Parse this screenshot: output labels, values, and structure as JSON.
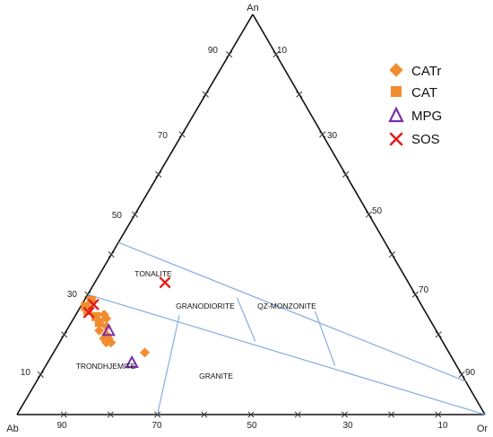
{
  "chart_data": {
    "type": "scatter",
    "diagram": "ternary",
    "vertices": {
      "top": "An",
      "left": "Ab",
      "right": "Or"
    },
    "tick_labels": {
      "left_edge": [
        "10",
        "30",
        "50",
        "70",
        "90"
      ],
      "right_edge": [
        "10",
        "30",
        "50",
        "70",
        "90"
      ],
      "base": [
        "90",
        "70",
        "50",
        "30",
        "10"
      ]
    },
    "field_labels": [
      "TONALITE",
      "GRANODIORITE",
      "QZ-MONZONITE",
      "TRONDHJEMITE",
      "GRANITE"
    ],
    "boundaries": [
      {
        "from": [
          30,
          70,
          0
        ],
        "to": [
          0,
          0,
          100
        ]
      },
      {
        "from": [
          43,
          57,
          0
        ],
        "to": [
          8.3,
          0,
          91.7
        ]
      },
      {
        "from": [
          24.8,
          53,
          22.2
        ],
        "to": [
          0,
          70,
          30
        ]
      },
      {
        "from": [
          29.2,
          38.5,
          32.3
        ],
        "to": [
          18.3,
          40,
          41.7
        ]
      },
      {
        "from": [
          25.8,
          23.5,
          50.7
        ],
        "to": [
          12.2,
          26,
          61.8
        ]
      }
    ],
    "series": [
      {
        "name": "CATr",
        "marker": "diamond",
        "color": "#F28C30",
        "points": [
          [
            25,
            69,
            6
          ],
          [
            24,
            69,
            7
          ],
          [
            22,
            70,
            8
          ],
          [
            21,
            72,
            7
          ],
          [
            20,
            71,
            9
          ],
          [
            19,
            71,
            10
          ],
          [
            19,
            72,
            9
          ],
          [
            18,
            72,
            10
          ],
          [
            18,
            71,
            11
          ],
          [
            15.5,
            65,
            19.5
          ]
        ]
      },
      {
        "name": "CAT",
        "marker": "square",
        "color": "#F28C30",
        "points": [
          [
            28.5,
            70,
            1.5
          ],
          [
            27,
            72,
            1
          ],
          [
            26,
            72,
            2
          ],
          [
            24.5,
            71,
            4.5
          ],
          [
            23,
            71,
            6
          ]
        ]
      },
      {
        "name": "MPG",
        "marker": "triangle",
        "color": "#7A2FA8",
        "points": [
          [
            13,
            69,
            18
          ],
          [
            21,
            70,
            9
          ]
        ]
      },
      {
        "name": "SOS",
        "marker": "x",
        "color": "#E0201B",
        "points": [
          [
            33,
            52,
            15
          ],
          [
            27.5,
            70,
            2.5
          ],
          [
            25.5,
            72,
            2.5
          ]
        ]
      }
    ]
  }
}
